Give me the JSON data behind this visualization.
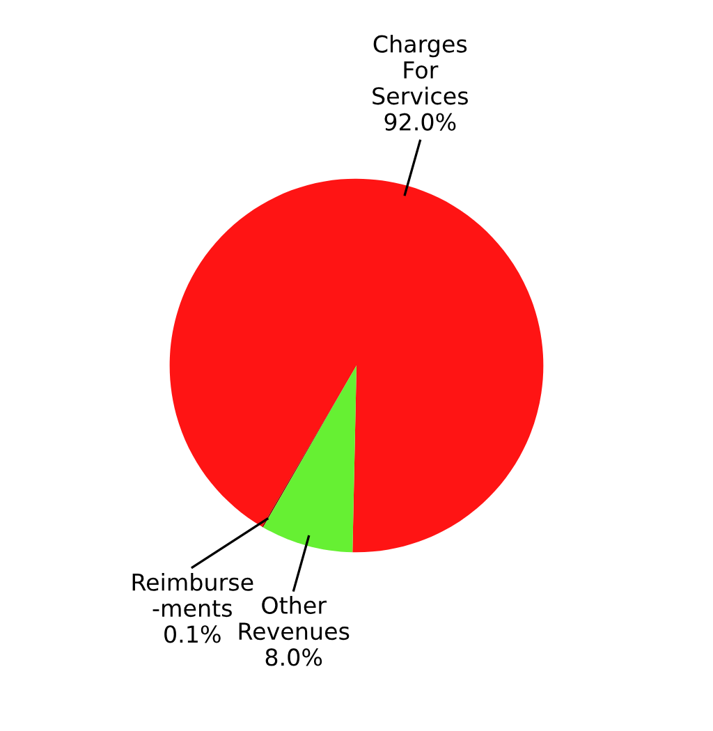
{
  "chart_data": {
    "type": "pie",
    "categories": [
      "Charges\nFor\nServices",
      "Reimburse\n-ments",
      "Other\nRevenues"
    ],
    "values": [
      92.0,
      0.1,
      8.0
    ],
    "value_labels": [
      "92.0%",
      "0.1%",
      "8.0%"
    ],
    "colors": [
      "#ff1414",
      "#8b0000",
      "#66f033"
    ]
  }
}
